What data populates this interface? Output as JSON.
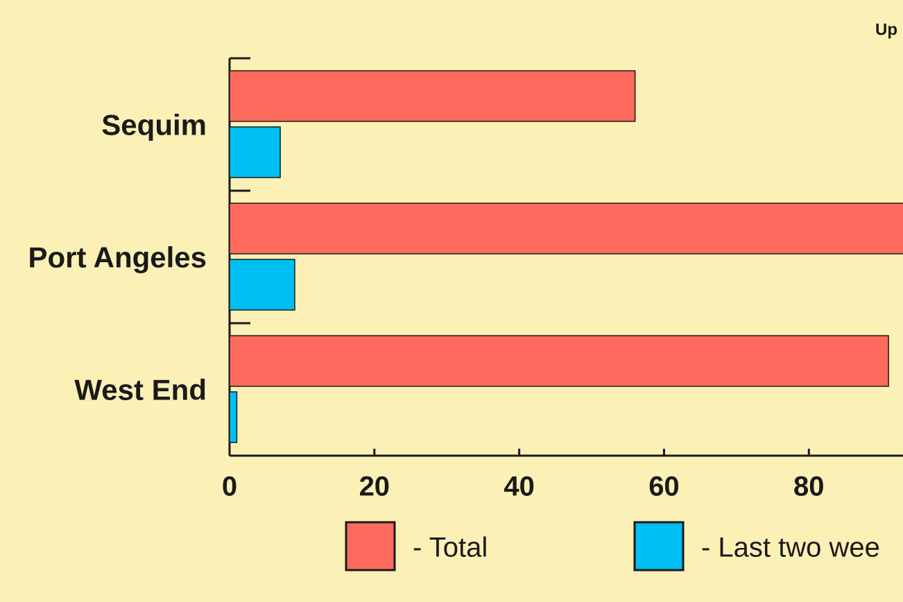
{
  "chart_data": {
    "type": "hbar",
    "subtitle": "Up",
    "categories": [
      "Sequim",
      "Port Angeles",
      "West End"
    ],
    "series": [
      {
        "name": "- Total",
        "color": "#ff6a5e",
        "values": [
          56,
          95,
          91
        ]
      },
      {
        "name": "- Last two wee",
        "color": "#00bff3",
        "values": [
          7,
          9,
          1
        ]
      }
    ],
    "xlim": [
      0,
      93
    ],
    "xticks": [
      0,
      20,
      40,
      60,
      80
    ]
  }
}
